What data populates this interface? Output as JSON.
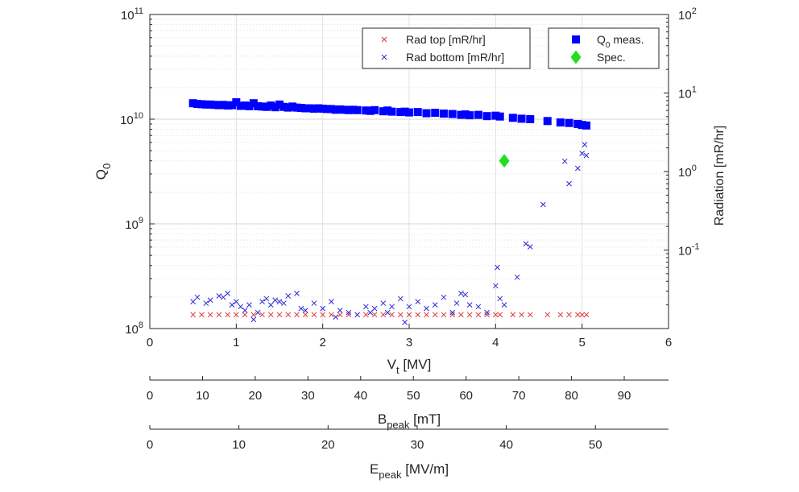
{
  "chart_data": {
    "type": "scatter",
    "x_axis": {
      "label": "V",
      "label_sub": "t",
      "label_unit": " [MV]",
      "lim": [
        0,
        6
      ],
      "ticks": [
        0,
        1,
        2,
        3,
        4,
        5,
        6
      ]
    },
    "y_axis_left": {
      "label": "Q",
      "label_sub": "0",
      "scale": "log",
      "lim": [
        100000000,
        100000000000
      ],
      "ticks": [
        {
          "value": 100000000,
          "base": "10",
          "exp": "8"
        },
        {
          "value": 1000000000,
          "base": "10",
          "exp": "9"
        },
        {
          "value": 10000000000,
          "base": "10",
          "exp": "10"
        },
        {
          "value": 100000000000,
          "base": "10",
          "exp": "11"
        }
      ]
    },
    "y_axis_right": {
      "label": "Radiation [mR/hr]",
      "scale": "log",
      "lim": [
        0.01,
        100
      ],
      "ticks": [
        {
          "value": 0.1,
          "base": "10",
          "exp": "-1"
        },
        {
          "value": 1,
          "base": "10",
          "exp": "0"
        },
        {
          "value": 10,
          "base": "10",
          "exp": "1"
        },
        {
          "value": 100,
          "base": "10",
          "exp": "2"
        }
      ]
    },
    "secondary_x_axes": [
      {
        "label": "B",
        "label_sub": "peak",
        "label_unit": " [mT]",
        "ticks": [
          0,
          10,
          20,
          30,
          40,
          50,
          60,
          70,
          80,
          90
        ],
        "per_MV": 16.4
      },
      {
        "label": "E",
        "label_sub": "peak",
        "label_unit": " [MV/m]",
        "ticks": [
          0,
          10,
          20,
          30,
          40,
          50
        ],
        "per_MV": 9.7
      }
    ],
    "grid": true,
    "legends": [
      {
        "position": "top-center",
        "entries": [
          {
            "text": "Rad top [mR/hr]",
            "marker": "x",
            "color": "#e03030"
          },
          {
            "text": "Rad bottom [mR/hr]",
            "marker": "x",
            "color": "#2b2bd6"
          }
        ]
      },
      {
        "position": "top-right",
        "entries": [
          {
            "text": "Q",
            "sub": "0",
            "tail": " meas.",
            "marker": "square",
            "color": "#0000ff"
          },
          {
            "text": "Spec.",
            "marker": "diamond",
            "color": "#22dd22"
          }
        ]
      }
    ],
    "series": [
      {
        "name": "Q0 meas.",
        "axis": "left",
        "marker": "square",
        "color": "#0000ff",
        "x": [
          0.5,
          0.55,
          0.6,
          0.65,
          0.7,
          0.75,
          0.8,
          0.85,
          0.9,
          0.95,
          1.0,
          1.05,
          1.1,
          1.15,
          1.2,
          1.25,
          1.3,
          1.35,
          1.4,
          1.45,
          1.5,
          1.55,
          1.6,
          1.65,
          1.7,
          1.75,
          1.8,
          1.85,
          1.9,
          1.95,
          2.0,
          2.05,
          2.1,
          2.15,
          2.2,
          2.25,
          2.3,
          2.35,
          2.4,
          2.5,
          2.55,
          2.6,
          2.7,
          2.75,
          2.8,
          2.9,
          2.95,
          3.0,
          3.1,
          3.2,
          3.3,
          3.4,
          3.5,
          3.6,
          3.65,
          3.7,
          3.8,
          3.9,
          4.0,
          4.05,
          4.2,
          4.3,
          4.4,
          4.6,
          4.75,
          4.85,
          4.95,
          5.0,
          5.05
        ],
        "y": [
          14200000000,
          14000000000,
          13900000000,
          13800000000,
          13800000000,
          13700000000,
          13600000000,
          13700000000,
          13500000000,
          13600000000,
          14500000000,
          13400000000,
          13500000000,
          13300000000,
          14200000000,
          13300000000,
          13200000000,
          13100000000,
          13500000000,
          13000000000,
          13800000000,
          13100000000,
          12900000000,
          13200000000,
          12900000000,
          12800000000,
          12700000000,
          12700000000,
          12600000000,
          12700000000,
          12600000000,
          12500000000,
          12500000000,
          12300000000,
          12400000000,
          12300000000,
          12200000000,
          12300000000,
          12200000000,
          12100000000,
          12000000000,
          12200000000,
          11900000000,
          12100000000,
          11800000000,
          11700000000,
          11800000000,
          11600000000,
          11700000000,
          11400000000,
          11500000000,
          11300000000,
          11200000000,
          11000000000,
          11100000000,
          10900000000,
          11000000000,
          10700000000,
          10800000000,
          10600000000,
          10300000000,
          10100000000,
          10000000000,
          9600000000,
          9300000000,
          9200000000,
          9000000000,
          8800000000,
          8700000000
        ]
      },
      {
        "name": "Spec.",
        "axis": "left",
        "marker": "diamond",
        "color": "#22dd22",
        "x": [
          4.1
        ],
        "y": [
          4000000000
        ]
      },
      {
        "name": "Rad top [mR/hr]",
        "axis": "right",
        "marker": "x",
        "color": "#e03030",
        "x": [
          0.5,
          0.6,
          0.7,
          0.8,
          0.9,
          1.0,
          1.1,
          1.2,
          1.3,
          1.4,
          1.5,
          1.6,
          1.7,
          1.8,
          1.9,
          2.0,
          2.1,
          2.2,
          2.3,
          2.4,
          2.5,
          2.6,
          2.7,
          2.8,
          2.9,
          3.0,
          3.1,
          3.2,
          3.3,
          3.4,
          3.5,
          3.6,
          3.7,
          3.8,
          3.9,
          4.0,
          4.05,
          4.2,
          4.3,
          4.4,
          4.6,
          4.75,
          4.85,
          4.95,
          5.0,
          5.05
        ],
        "y": [
          0.015,
          0.015,
          0.015,
          0.015,
          0.015,
          0.015,
          0.015,
          0.015,
          0.015,
          0.015,
          0.015,
          0.015,
          0.015,
          0.015,
          0.015,
          0.015,
          0.015,
          0.015,
          0.015,
          0.015,
          0.015,
          0.015,
          0.015,
          0.015,
          0.015,
          0.015,
          0.015,
          0.015,
          0.015,
          0.015,
          0.015,
          0.015,
          0.015,
          0.015,
          0.015,
          0.015,
          0.015,
          0.015,
          0.015,
          0.015,
          0.015,
          0.015,
          0.015,
          0.015,
          0.015,
          0.015
        ]
      },
      {
        "name": "Rad bottom [mR/hr]",
        "axis": "right",
        "marker": "x",
        "color": "#2b2bd6",
        "x": [
          0.5,
          0.55,
          0.65,
          0.7,
          0.8,
          0.85,
          0.9,
          0.95,
          1.0,
          1.05,
          1.1,
          1.15,
          1.2,
          1.25,
          1.3,
          1.35,
          1.4,
          1.45,
          1.5,
          1.55,
          1.6,
          1.7,
          1.75,
          1.8,
          1.9,
          2.0,
          2.1,
          2.15,
          2.2,
          2.3,
          2.4,
          2.5,
          2.55,
          2.6,
          2.7,
          2.75,
          2.8,
          2.9,
          2.95,
          3.0,
          3.1,
          3.2,
          3.3,
          3.4,
          3.5,
          3.55,
          3.6,
          3.65,
          3.7,
          3.8,
          3.9,
          4.0,
          4.02,
          4.05,
          4.1,
          4.25,
          4.35,
          4.4,
          4.55,
          4.8,
          4.85,
          4.95,
          5.0,
          5.03,
          5.05
        ],
        "y": [
          0.022,
          0.025,
          0.021,
          0.023,
          0.026,
          0.025,
          0.028,
          0.02,
          0.022,
          0.019,
          0.017,
          0.02,
          0.013,
          0.016,
          0.022,
          0.024,
          0.02,
          0.023,
          0.022,
          0.021,
          0.026,
          0.028,
          0.018,
          0.017,
          0.021,
          0.018,
          0.022,
          0.014,
          0.017,
          0.016,
          0.015,
          0.019,
          0.016,
          0.018,
          0.021,
          0.016,
          0.019,
          0.024,
          0.012,
          0.019,
          0.022,
          0.018,
          0.02,
          0.025,
          0.016,
          0.021,
          0.028,
          0.027,
          0.02,
          0.019,
          0.016,
          0.035,
          0.06,
          0.024,
          0.02,
          0.045,
          0.12,
          0.11,
          0.38,
          1.35,
          0.7,
          1.1,
          1.7,
          2.2,
          1.6
        ]
      }
    ]
  }
}
